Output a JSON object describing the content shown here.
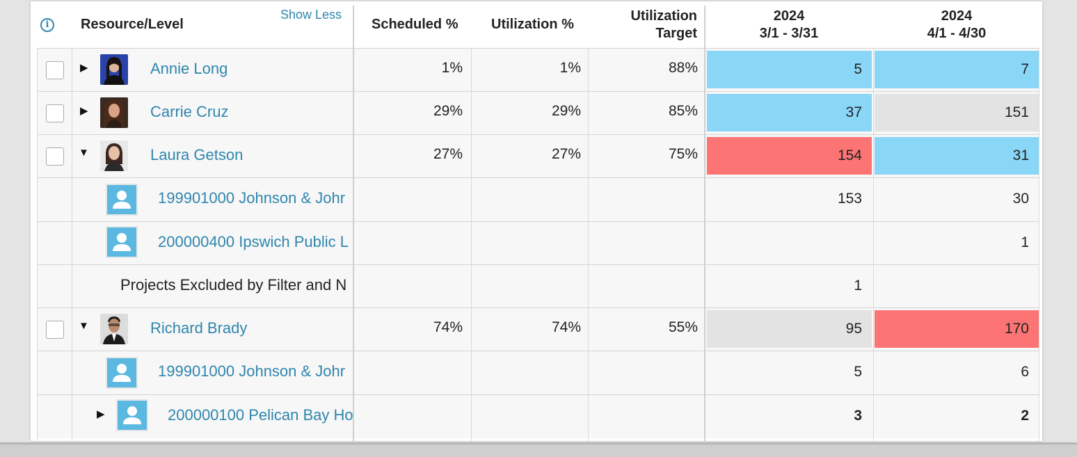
{
  "header": {
    "resource_level": "Resource/Level",
    "show_less": "Show Less",
    "scheduled": "Scheduled %",
    "utilization": "Utilization %",
    "target_line1": "Utilization",
    "target_line2": "Target",
    "period1_year": "2024",
    "period1_range": "3/1 - 3/31",
    "period2_year": "2024",
    "period2_range": "4/1 - 4/30"
  },
  "colors": {
    "link": "#2f86ad",
    "over": "#fc7474",
    "under": "#8ad6f6",
    "neutral": "#e3e3e3"
  },
  "rows": [
    {
      "label": "Annie Long",
      "scheduled": "1%",
      "utilization": "1%",
      "target": "88%",
      "p1": "5",
      "p2": "7"
    },
    {
      "label": "Carrie Cruz",
      "scheduled": "29%",
      "utilization": "29%",
      "target": "85%",
      "p1": "37",
      "p2": "151"
    },
    {
      "label": "Laura Getson",
      "scheduled": "27%",
      "utilization": "27%",
      "target": "75%",
      "p1": "154",
      "p2": "31"
    },
    {
      "label": "199901000 Johnson & Johr",
      "p1": "153",
      "p2": "30"
    },
    {
      "label": "200000400 Ipswich Public L",
      "p1": "",
      "p2": "1"
    },
    {
      "label": "Projects Excluded by Filter and N",
      "p1": "1",
      "p2": ""
    },
    {
      "label": "Richard Brady",
      "scheduled": "74%",
      "utilization": "74%",
      "target": "55%",
      "p1": "95",
      "p2": "170"
    },
    {
      "label": "199901000 Johnson & Johr",
      "p1": "5",
      "p2": "6"
    },
    {
      "label": "200000100 Pelican Bay Ho",
      "p1": "3",
      "p2": "2"
    }
  ]
}
